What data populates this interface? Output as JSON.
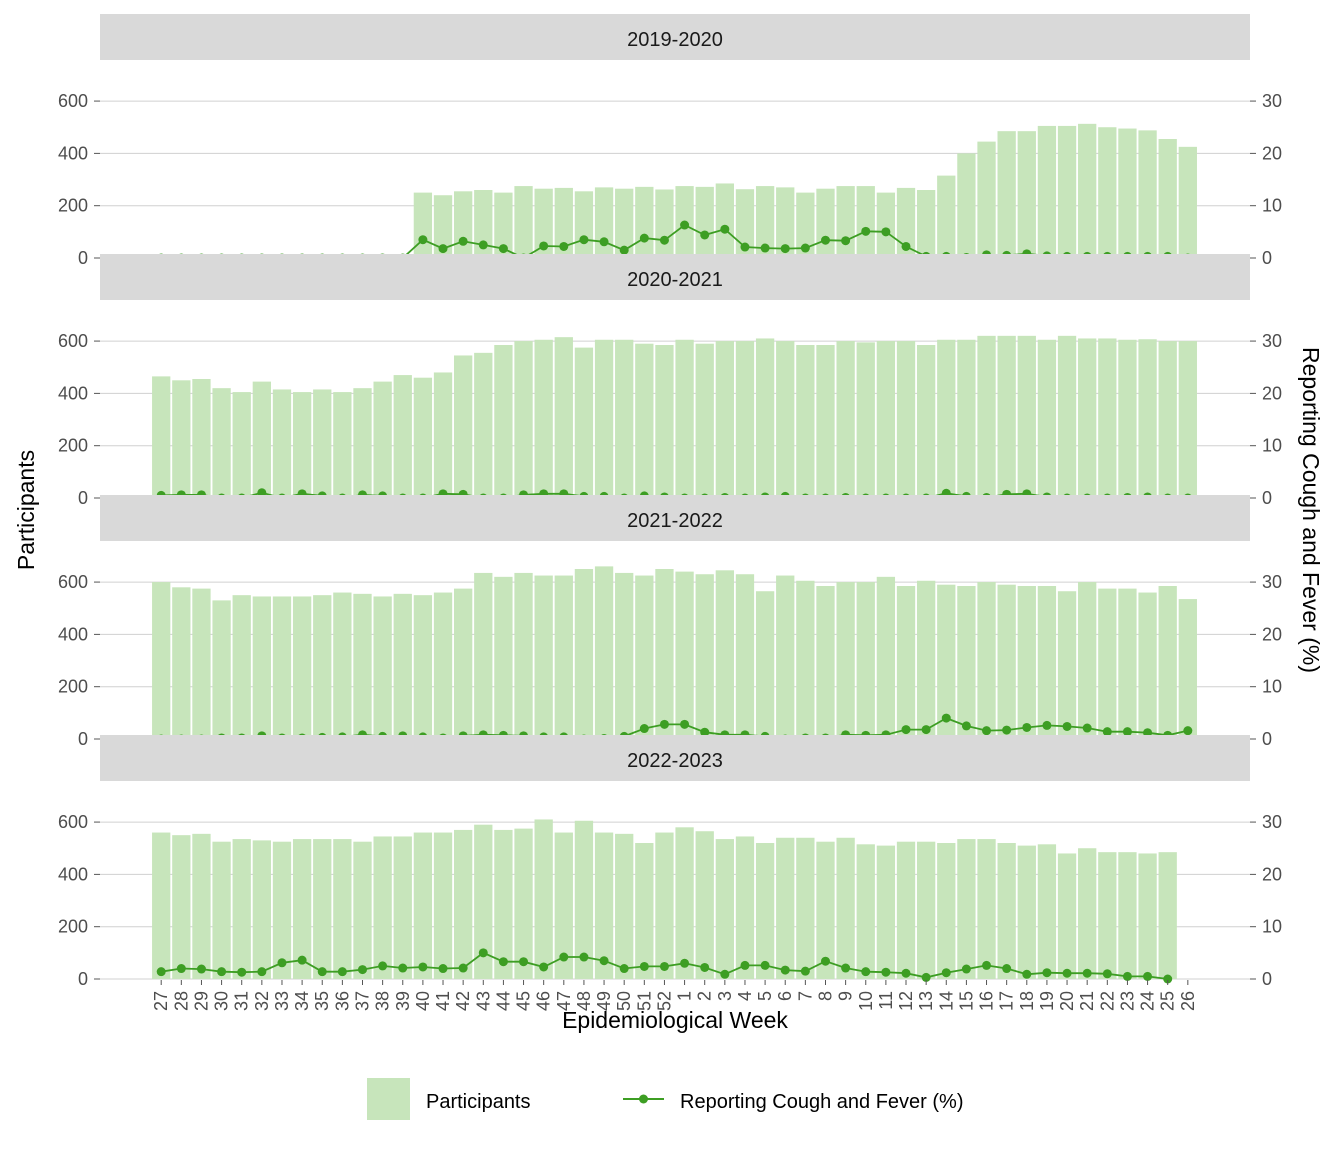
{
  "chart_data": {
    "type": "bar+line",
    "xlabel": "Epidemiological Week",
    "ylabel_left": "Participants",
    "ylabel_right": "Reporting Cough and Fever (%)",
    "left_ylim": [
      0,
      650
    ],
    "right_ylim": [
      0,
      32.5
    ],
    "left_ticks": [
      "0",
      "200",
      "400",
      "600"
    ],
    "right_ticks": [
      "0",
      "10",
      "20",
      "30"
    ],
    "colors": {
      "bar": "#c7e5bb",
      "line": "#3d9e23",
      "strip": "#d9d9d9",
      "grid": "#d0d0d0"
    },
    "categories": [
      "27",
      "28",
      "29",
      "30",
      "31",
      "32",
      "33",
      "34",
      "35",
      "36",
      "37",
      "38",
      "39",
      "40",
      "41",
      "42",
      "43",
      "44",
      "45",
      "46",
      "47",
      "48",
      "49",
      "50",
      "51",
      "52",
      "1",
      "2",
      "3",
      "4",
      "5",
      "6",
      "7",
      "8",
      "9",
      "10",
      "11",
      "12",
      "13",
      "14",
      "15",
      "16",
      "17",
      "18",
      "19",
      "20",
      "21",
      "22",
      "23",
      "24",
      "25",
      "26"
    ],
    "legend": {
      "bar": "Participants",
      "line": "Reporting Cough and Fever (%)",
      "placement": "bottom"
    },
    "panels": [
      {
        "title": "2019-2020",
        "participants": [
          null,
          null,
          null,
          null,
          null,
          null,
          null,
          null,
          null,
          null,
          null,
          null,
          null,
          250,
          240,
          255,
          260,
          250,
          275,
          265,
          268,
          255,
          270,
          265,
          272,
          262,
          275,
          272,
          285,
          263,
          275,
          270,
          250,
          265,
          275,
          275,
          250,
          268,
          260,
          315,
          400,
          445,
          485,
          485,
          505,
          505,
          513,
          500,
          495,
          488,
          455,
          425
        ],
        "cough_fever_pct": [
          0,
          0,
          0,
          0,
          0,
          0,
          0,
          0,
          0,
          0,
          0,
          0,
          0,
          3.5,
          1.8,
          3.2,
          2.5,
          1.8,
          0,
          2.3,
          2.2,
          3.5,
          3.1,
          1.5,
          3.8,
          3.4,
          6.3,
          4.4,
          5.5,
          2.1,
          1.9,
          1.8,
          1.9,
          3.4,
          3.3,
          5.1,
          5.0,
          2.2,
          0.3,
          0.3,
          0.1,
          0.6,
          0.5,
          0.8,
          0.4,
          0.3,
          0.3,
          0.3,
          0.3,
          0.3,
          0.3,
          0
        ]
      },
      {
        "title": "2020-2021",
        "participants": [
          465,
          450,
          455,
          420,
          405,
          445,
          415,
          405,
          415,
          405,
          420,
          445,
          470,
          460,
          480,
          545,
          555,
          585,
          600,
          605,
          615,
          575,
          605,
          605,
          590,
          585,
          605,
          590,
          600,
          600,
          610,
          600,
          585,
          585,
          600,
          595,
          600,
          600,
          585,
          605,
          605,
          620,
          620,
          620,
          605,
          620,
          610,
          610,
          605,
          607,
          600,
          600
        ],
        "cough_fever_pct": [
          0.5,
          0.6,
          0.6,
          0,
          0,
          1.0,
          0,
          0.8,
          0.4,
          0,
          0.6,
          0.4,
          0,
          0,
          0.8,
          0.7,
          0,
          0,
          0.6,
          0.8,
          0.8,
          0.3,
          0.3,
          0,
          0.4,
          0.2,
          0,
          0,
          0.1,
          0,
          0.2,
          0.3,
          0,
          0,
          0.1,
          0,
          0,
          0,
          0,
          0.9,
          0.3,
          0.1,
          0.7,
          0.8,
          0.2,
          0,
          0,
          0,
          0.1,
          0.2,
          0,
          0
        ]
      },
      {
        "title": "2021-2022",
        "participants": [
          600,
          580,
          575,
          530,
          550,
          545,
          545,
          545,
          550,
          560,
          555,
          545,
          555,
          550,
          560,
          575,
          635,
          620,
          635,
          625,
          625,
          650,
          660,
          635,
          625,
          650,
          640,
          630,
          645,
          630,
          565,
          625,
          605,
          585,
          600,
          600,
          620,
          585,
          605,
          590,
          585,
          600,
          590,
          585,
          585,
          565,
          600,
          575,
          575,
          560,
          585,
          535
        ],
        "cough_fever_pct": [
          0,
          0,
          0,
          0.2,
          0.2,
          0.6,
          0.2,
          0.2,
          0.3,
          0.4,
          0.8,
          0.5,
          0.6,
          0.4,
          0.2,
          0.6,
          0.8,
          0.7,
          0.6,
          0.4,
          0.4,
          0,
          0.1,
          0.5,
          2.0,
          2.8,
          2.8,
          1.3,
          0.8,
          0.8,
          0.5,
          0,
          0.2,
          0.2,
          0.8,
          0.7,
          0.8,
          1.8,
          1.8,
          4.0,
          2.5,
          1.6,
          1.7,
          2.2,
          2.6,
          2.4,
          2.1,
          1.4,
          1.4,
          1.2,
          0.7,
          1.6
        ]
      },
      {
        "title": "2022-2023",
        "participants": [
          560,
          550,
          555,
          525,
          535,
          530,
          525,
          535,
          535,
          535,
          525,
          545,
          545,
          560,
          560,
          570,
          590,
          570,
          575,
          610,
          560,
          605,
          560,
          555,
          520,
          560,
          580,
          565,
          535,
          545,
          520,
          540,
          540,
          525,
          540,
          515,
          510,
          525,
          525,
          520,
          535,
          535,
          520,
          510,
          515,
          480,
          500,
          485,
          485,
          480,
          485,
          null
        ],
        "cough_fever_pct": [
          1.4,
          2.0,
          1.9,
          1.4,
          1.3,
          1.4,
          3.1,
          3.6,
          1.4,
          1.4,
          1.8,
          2.5,
          2.1,
          2.3,
          2.0,
          2.1,
          5.0,
          3.3,
          3.3,
          2.3,
          4.2,
          4.2,
          3.5,
          2.0,
          2.4,
          2.4,
          3.0,
          2.2,
          0.9,
          2.6,
          2.6,
          1.7,
          1.5,
          3.4,
          2.1,
          1.4,
          1.3,
          1.1,
          0.3,
          1.2,
          1.9,
          2.6,
          2.0,
          0.9,
          1.2,
          1.1,
          1.1,
          1.0,
          0.5,
          0.5,
          0,
          null
        ]
      }
    ]
  }
}
